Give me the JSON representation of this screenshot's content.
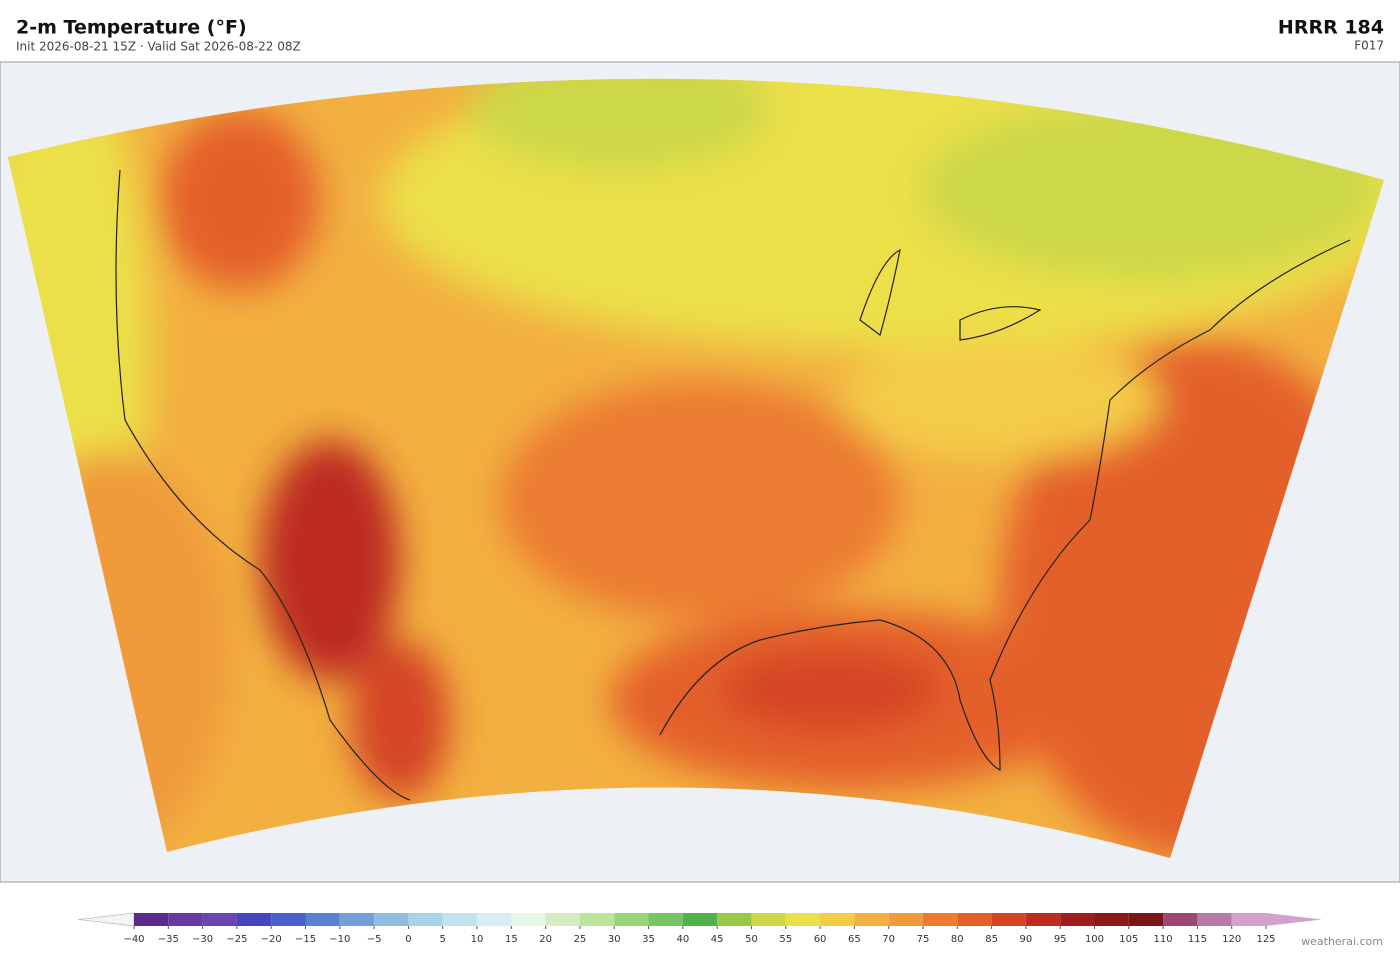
{
  "header": {
    "title": "2-m Temperature  (°F)",
    "subtitle": "Init 2026-08-21 15Z  ·  Valid Sat 2026-08-22 08Z",
    "model": "HRRR  184",
    "forecast_hour": "F017"
  },
  "colorbar": {
    "range": [
      -40,
      125
    ],
    "ticks": [
      {
        "value": -40,
        "label": "−40"
      },
      {
        "value": -35,
        "label": "−35"
      },
      {
        "value": -30,
        "label": "−30"
      },
      {
        "value": -25,
        "label": "−25"
      },
      {
        "value": -20,
        "label": "−20"
      },
      {
        "value": -15,
        "label": "−15"
      },
      {
        "value": -10,
        "label": "−10"
      },
      {
        "value": -5,
        "label": "−5"
      },
      0,
      5,
      10,
      15,
      20,
      25,
      30,
      35,
      40,
      45,
      50,
      55,
      60,
      65,
      70,
      75,
      80,
      85,
      90,
      95,
      100,
      105,
      110,
      115,
      120,
      125
    ],
    "colors": [
      "#5b2a8c",
      "#6b3a9e",
      "#6a46b0",
      "#4646bf",
      "#4a5fc8",
      "#5a80d0",
      "#74a0d8",
      "#90bce0",
      "#a8d4e8",
      "#c0e2ee",
      "#d8eef2",
      "#e6f5e6",
      "#d4ecc0",
      "#bce49a",
      "#98d478",
      "#78c464",
      "#50b04a",
      "#98c848",
      "#ccd848",
      "#ece04a",
      "#f4cc48",
      "#f2b040",
      "#f09a3a",
      "#ec7c32",
      "#e4602a",
      "#d44426",
      "#bc2c22",
      "#9e1e1e",
      "#8c1818",
      "#7a1616",
      "#9c4870",
      "#b878a8",
      "#d4a0cc"
    ],
    "extend_colors": [
      "#f4f4f8",
      "#d4a0cc"
    ]
  },
  "credit": "weatherai.com"
}
